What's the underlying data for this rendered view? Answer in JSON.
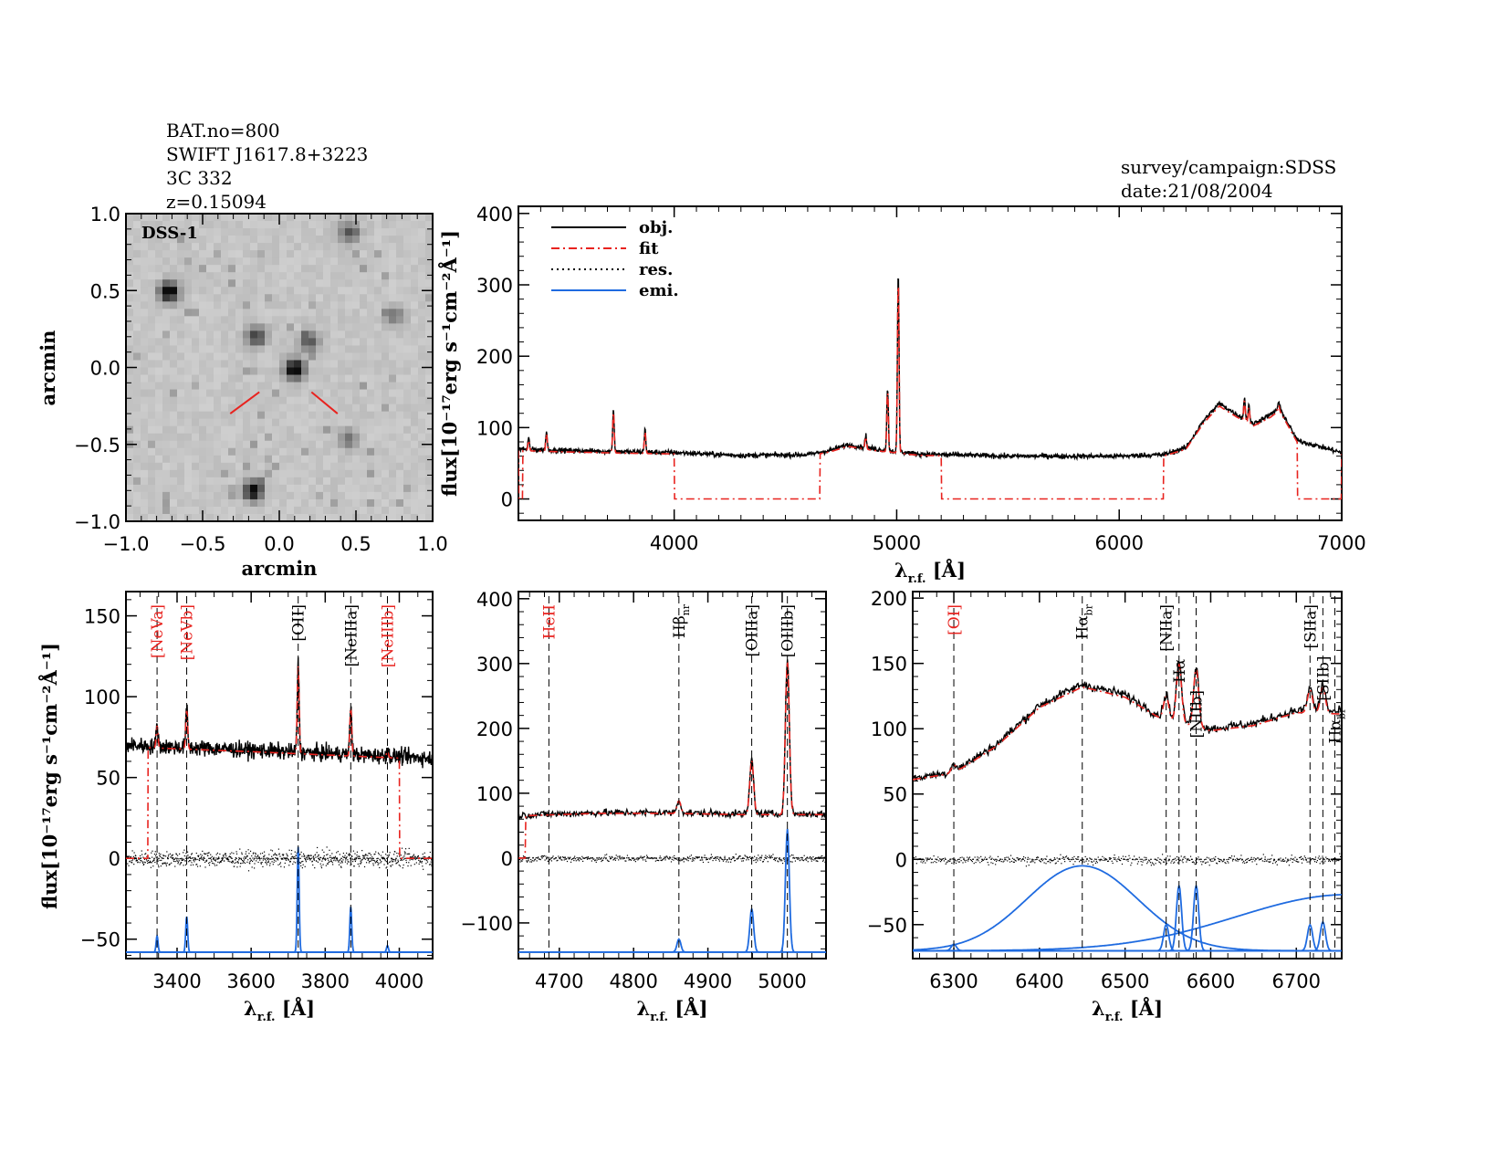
{
  "header": {
    "left_lines": [
      "BAT.no=800",
      "SWIFT J1617.8+3223",
      "3C 332",
      "z=0.15094"
    ],
    "right_lines": [
      "survey/campaign:SDSS",
      "date:21/08/2004"
    ]
  },
  "colors": {
    "obj": "#000000",
    "fit": "#e8231f",
    "res": "#000000",
    "emi": "#1f6be0",
    "red_label": "#e8231f"
  },
  "chart_data": [
    {
      "type": "heatmap",
      "panel": "image",
      "image_label": "DSS-1",
      "xlabel": "arcmin",
      "ylabel": "arcmin",
      "xlim": [
        -1.0,
        1.0
      ],
      "ylim": [
        -1.0,
        1.0
      ],
      "xticks": [
        "−1.0",
        "−0.5",
        "0.0",
        "0.5",
        "1.0"
      ],
      "yticks": [
        "−1.0",
        "−0.5",
        "0.0",
        "0.5",
        "1.0"
      ],
      "sources": [
        {
          "x": -0.72,
          "y": 0.49,
          "strength": 0.9
        },
        {
          "x": 0.1,
          "y": -0.01,
          "strength": 0.95
        },
        {
          "x": -0.15,
          "y": 0.2,
          "strength": 0.6
        },
        {
          "x": 0.2,
          "y": 0.17,
          "strength": 0.5
        },
        {
          "x": -0.17,
          "y": -0.8,
          "strength": 0.85
        },
        {
          "x": 0.46,
          "y": 0.88,
          "strength": 0.5
        },
        {
          "x": 0.75,
          "y": 0.33,
          "strength": 0.35
        },
        {
          "x": 0.45,
          "y": -0.47,
          "strength": 0.35
        }
      ]
    },
    {
      "type": "line",
      "panel": "full",
      "xlabel": "λ",
      "xlabel_sub": "r.f.",
      "xlabel_unit": "[Å]",
      "ylabel": "flux[10⁻¹⁷erg s⁻¹cm⁻²Å⁻¹]",
      "xlim": [
        3300,
        7000
      ],
      "ylim": [
        -30,
        410
      ],
      "xticks": [
        4000,
        5000,
        6000,
        7000
      ],
      "yticks": [
        0,
        100,
        200,
        300,
        400
      ],
      "legend": {
        "position": "top-left",
        "entries": [
          "obj.",
          "fit",
          "res.",
          "emi."
        ]
      },
      "continuum": [
        [
          3300,
          70
        ],
        [
          3500,
          68
        ],
        [
          3800,
          66
        ],
        [
          4000,
          65
        ],
        [
          4300,
          61
        ],
        [
          4600,
          62
        ],
        [
          4700,
          68
        ],
        [
          4780,
          76
        ],
        [
          4900,
          70
        ],
        [
          5100,
          63
        ],
        [
          5500,
          60
        ],
        [
          6000,
          60
        ],
        [
          6200,
          62
        ],
        [
          6300,
          72
        ],
        [
          6380,
          110
        ],
        [
          6450,
          134
        ],
        [
          6520,
          120
        ],
        [
          6600,
          105
        ],
        [
          6680,
          118
        ],
        [
          6720,
          128
        ],
        [
          6800,
          82
        ],
        [
          7000,
          65
        ]
      ],
      "lines": [
        [
          3346,
          15
        ],
        [
          3426,
          25
        ],
        [
          3727,
          60
        ],
        [
          3869,
          32
        ],
        [
          4861,
          18
        ],
        [
          4959,
          88
        ],
        [
          5007,
          250
        ],
        [
          6563,
          30
        ],
        [
          6583,
          25
        ],
        [
          6716,
          8
        ]
      ],
      "fit_zero_ranges": [
        [
          3300,
          3320
        ],
        [
          4000,
          4655
        ],
        [
          5200,
          6200
        ],
        [
          6800,
          7000
        ]
      ]
    },
    {
      "type": "line",
      "panel": "zoom-1",
      "xlabel": "λ",
      "xlabel_sub": "r.f.",
      "xlabel_unit": "[Å]",
      "ylabel": "flux[10⁻¹⁷erg s⁻¹cm⁻²Å⁻¹]",
      "xlim": [
        3262,
        4090
      ],
      "ylim": [
        -62,
        165
      ],
      "xticks": [
        3400,
        3600,
        3800,
        4000
      ],
      "yticks": [
        -50,
        0,
        50,
        100,
        150
      ],
      "continuum": [
        [
          3262,
          70
        ],
        [
          3600,
          67
        ],
        [
          4090,
          62
        ]
      ],
      "fit_range": [
        3322,
        4000
      ],
      "emi_baseline": -58,
      "lines": [
        {
          "label": "[NeVa]",
          "wave": 3346,
          "amp": 14,
          "emi": 10,
          "color": "red"
        },
        {
          "label": "[NeVb]",
          "wave": 3426,
          "amp": 24,
          "emi": 22,
          "color": "red"
        },
        {
          "label": "[OII]",
          "wave": 3727,
          "amp": 55,
          "emi": 65,
          "color": "black"
        },
        {
          "label": "[NeIIIa]",
          "wave": 3869,
          "amp": 30,
          "emi": 28,
          "color": "black"
        },
        {
          "label": "[NeIIIb]",
          "wave": 3968,
          "amp": 4,
          "emi": 4,
          "color": "red"
        }
      ]
    },
    {
      "type": "line",
      "panel": "zoom-2",
      "xlabel": "λ",
      "xlabel_sub": "r.f.",
      "xlabel_unit": "[Å]",
      "xlim": [
        4645,
        5059
      ],
      "ylim": [
        -155,
        411
      ],
      "xticks": [
        4700,
        4800,
        4900,
        5000
      ],
      "yticks": [
        -100,
        0,
        100,
        200,
        300,
        400
      ],
      "continuum": [
        [
          4645,
          66
        ],
        [
          4750,
          70
        ],
        [
          4850,
          70
        ],
        [
          4950,
          68
        ],
        [
          5059,
          68
        ]
      ],
      "fit_range": [
        4655,
        5059
      ],
      "emi_baseline": -145,
      "lines": [
        {
          "label": "HeII",
          "wave": 4686,
          "amp": 0,
          "emi": 0,
          "color": "red"
        },
        {
          "label": "Hβ",
          "sub": "nr",
          "wave": 4861,
          "amp": 20,
          "emi": 20,
          "color": "black"
        },
        {
          "label": "[OIIIa]",
          "wave": 4959,
          "amp": 85,
          "emi": 67,
          "color": "black"
        },
        {
          "label": "[OIIIb]",
          "wave": 5007,
          "amp": 240,
          "emi": 190,
          "color": "black"
        }
      ]
    },
    {
      "type": "line",
      "panel": "zoom-3",
      "xlabel": "λ",
      "xlabel_sub": "r.f.",
      "xlabel_unit": "[Å]",
      "xlim": [
        6252,
        6753
      ],
      "ylim": [
        -76,
        205
      ],
      "xticks": [
        6300,
        6400,
        6500,
        6600,
        6700
      ],
      "yticks": [
        -50,
        0,
        50,
        100,
        150,
        200
      ],
      "continuum": [
        [
          6252,
          62
        ],
        [
          6300,
          67
        ],
        [
          6350,
          88
        ],
        [
          6400,
          118
        ],
        [
          6450,
          134
        ],
        [
          6500,
          126
        ],
        [
          6540,
          110
        ],
        [
          6600,
          100
        ],
        [
          6650,
          104
        ],
        [
          6700,
          114
        ],
        [
          6753,
          113
        ]
      ],
      "fit_range": [
        6252,
        6753
      ],
      "emi_baseline": -70,
      "broad_components": [
        {
          "wave": 6450,
          "amp": 65,
          "sigma": 65
        },
        {
          "wave": 6760,
          "amp": 43,
          "sigma": 130
        }
      ],
      "lines": [
        {
          "label": "[OI]",
          "wave": 6300,
          "amp": 6,
          "emi": 5,
          "color": "red"
        },
        {
          "label": "Hα",
          "sub": "br",
          "wave": 6450,
          "amp": 0,
          "emi": 0,
          "color": "black"
        },
        {
          "label": "[NIIa]",
          "wave": 6548,
          "amp": 18,
          "emi": 20,
          "color": "black"
        },
        {
          "label": "Hα",
          "wave": 6563,
          "amp": 45,
          "emi": 50,
          "color": "black"
        },
        {
          "label": "[NIIb]",
          "wave": 6583,
          "amp": 45,
          "emi": 50,
          "color": "black"
        },
        {
          "label": "[SIIa]",
          "wave": 6716,
          "amp": 18,
          "emi": 20,
          "color": "black"
        },
        {
          "label": "[SIIb]",
          "wave": 6731,
          "amp": 20,
          "emi": 22,
          "color": "black"
        },
        {
          "label": "Hα",
          "sub": "br",
          "wave": 6745,
          "amp": 0,
          "emi": 0,
          "color": "black"
        }
      ]
    }
  ]
}
